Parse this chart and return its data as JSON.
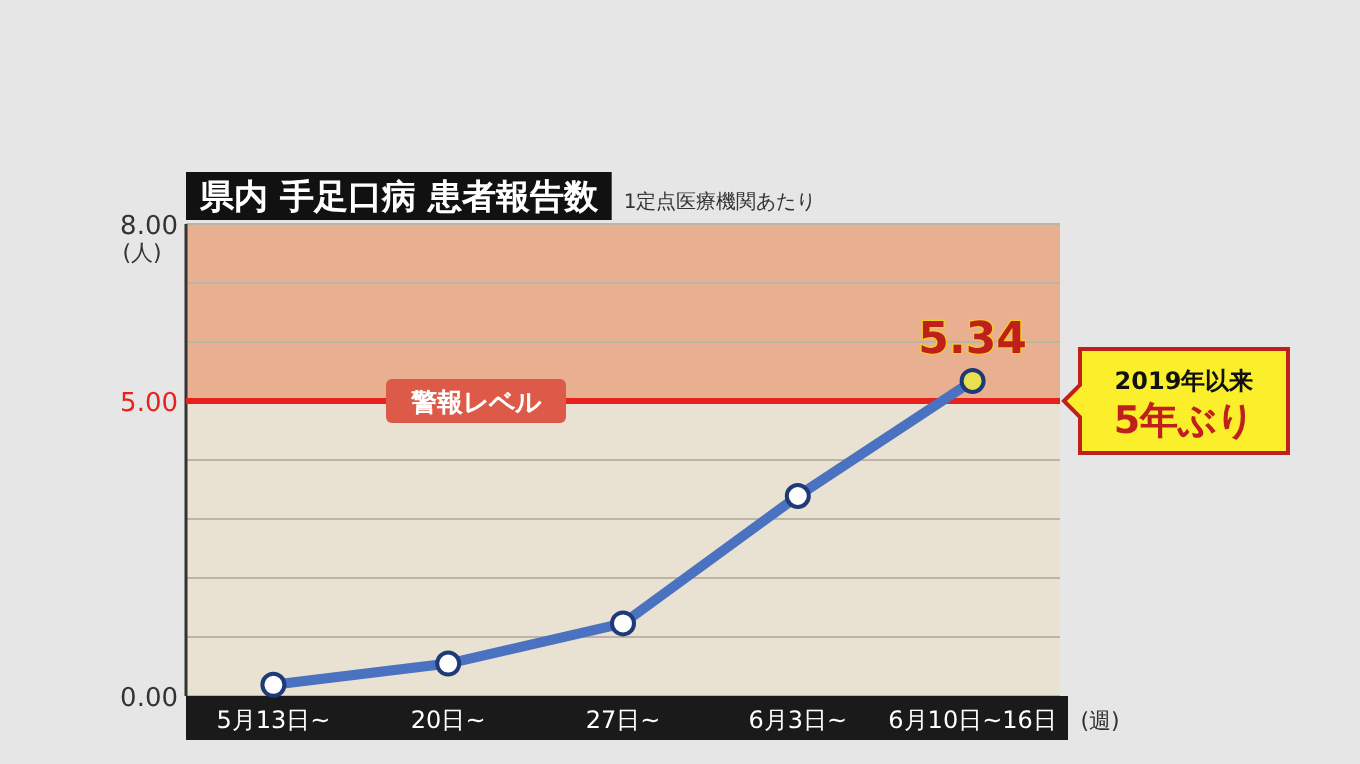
{
  "chart_data": {
    "type": "line",
    "title": "県内 手足口病 患者報告数",
    "subtitle": "1定点医療機関あたり",
    "xlabel": "(週)",
    "ylabel": "(人)",
    "categories": [
      "5月13日~",
      "20日~",
      "27日~",
      "6月3日~",
      "6月10日~16日"
    ],
    "series": [
      {
        "color": "#4a72c0",
        "values": [
          0.19,
          0.55,
          1.23,
          3.39,
          5.34
        ],
        "value_labels": [
          null,
          null,
          null,
          null,
          "5.34"
        ]
      }
    ],
    "ylim": [
      0,
      8
    ],
    "yticks": [
      {
        "value": 0,
        "label": "0.00"
      },
      {
        "value": 1,
        "label": null
      },
      {
        "value": 2,
        "label": null
      },
      {
        "value": 3,
        "label": null
      },
      {
        "value": 4,
        "label": null
      },
      {
        "value": 5,
        "label": "5.00"
      },
      {
        "value": 6,
        "label": null
      },
      {
        "value": 7,
        "label": null
      },
      {
        "value": 8,
        "label": "8.00"
      }
    ],
    "grid": "y",
    "marker": "circle",
    "bands": [
      {
        "axis": "y",
        "from": 5,
        "to": 8,
        "color": "#e8b090"
      }
    ],
    "ref_lines": [
      {
        "axis": "y",
        "value": 5,
        "label": "警報レベル",
        "color": "#e8211c"
      }
    ],
    "annotations": [
      "2019年以来\n5年ぶり"
    ]
  }
}
